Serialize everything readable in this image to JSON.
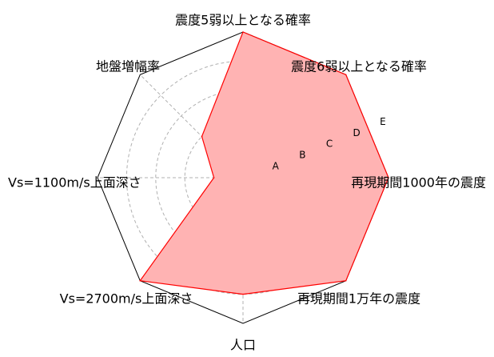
{
  "chart_data": {
    "type": "radar",
    "axes": [
      "震度5弱以上となる確率",
      "震度6弱以上となる確率",
      "再現期間1000年の震度",
      "再現期間1万年の震度",
      "人口",
      "Vs=2700m/s上面深さ",
      "Vs=1100m/s上面深さ",
      "地盤増幅率"
    ],
    "levels": [
      "A",
      "B",
      "C",
      "D",
      "E"
    ],
    "rmax": 5,
    "values": [
      5,
      5,
      5,
      5,
      4,
      5,
      1,
      2
    ],
    "grid": true,
    "colors": {
      "fill": "#ffb3b3",
      "line": "#ff0000",
      "frame": "#000000",
      "grid": "#b0b0b0"
    }
  }
}
